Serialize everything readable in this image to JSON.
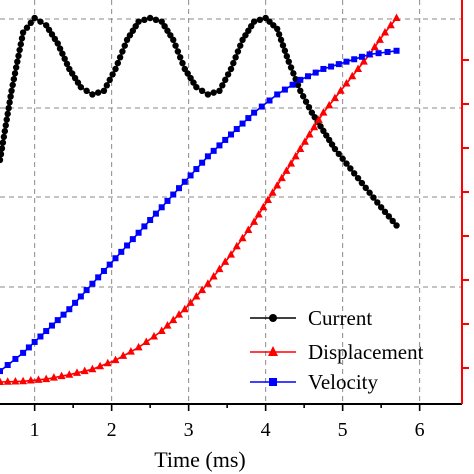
{
  "chart_data": {
    "type": "line",
    "xlabel": "Time (ms)",
    "x_ticks": [
      "1",
      "2",
      "3",
      "4",
      "5",
      "6"
    ],
    "xlim": [
      0.55,
      6.55
    ],
    "grid": true,
    "legend_position": "bottom-right",
    "series": [
      {
        "name": "Current",
        "color": "#000000",
        "marker": "circle",
        "x": [
          0.55,
          0.7,
          0.85,
          1.0,
          1.15,
          1.3,
          1.45,
          1.6,
          1.75,
          1.9,
          2.05,
          2.2,
          2.35,
          2.5,
          2.65,
          2.8,
          2.95,
          3.1,
          3.25,
          3.4,
          3.55,
          3.7,
          3.85,
          4.0,
          4.15,
          4.3,
          4.45,
          4.6,
          4.75,
          4.9,
          5.05,
          5.2,
          5.35,
          5.5,
          5.7
        ],
        "y": [
          0.61,
          0.8,
          0.96,
          1.0,
          0.98,
          0.93,
          0.86,
          0.81,
          0.79,
          0.8,
          0.86,
          0.94,
          0.99,
          1.0,
          0.99,
          0.94,
          0.86,
          0.81,
          0.79,
          0.8,
          0.86,
          0.94,
          0.99,
          1.0,
          0.97,
          0.88,
          0.8,
          0.74,
          0.69,
          0.64,
          0.6,
          0.56,
          0.52,
          0.48,
          0.43
        ]
      },
      {
        "name": "Displacement",
        "color": "#ff0000",
        "marker": "triangle",
        "x": [
          0.55,
          0.85,
          1.15,
          1.45,
          1.75,
          2.05,
          2.35,
          2.65,
          2.95,
          3.25,
          3.55,
          3.85,
          4.15,
          4.45,
          4.75,
          5.05,
          5.35,
          5.55,
          5.7
        ],
        "y": [
          0.0,
          0.002,
          0.008,
          0.02,
          0.035,
          0.06,
          0.095,
          0.14,
          0.2,
          0.27,
          0.35,
          0.44,
          0.54,
          0.64,
          0.74,
          0.82,
          0.9,
          0.96,
          1.0
        ]
      },
      {
        "name": "Velocity",
        "color": "#0000ff",
        "marker": "square",
        "x": [
          0.55,
          0.85,
          1.15,
          1.45,
          1.75,
          2.05,
          2.35,
          2.65,
          2.95,
          3.25,
          3.55,
          3.85,
          4.15,
          4.45,
          4.75,
          5.05,
          5.35,
          5.7
        ],
        "y": [
          0.03,
          0.08,
          0.14,
          0.2,
          0.27,
          0.34,
          0.41,
          0.48,
          0.55,
          0.62,
          0.68,
          0.74,
          0.79,
          0.83,
          0.86,
          0.88,
          0.9,
          0.91
        ]
      }
    ]
  }
}
